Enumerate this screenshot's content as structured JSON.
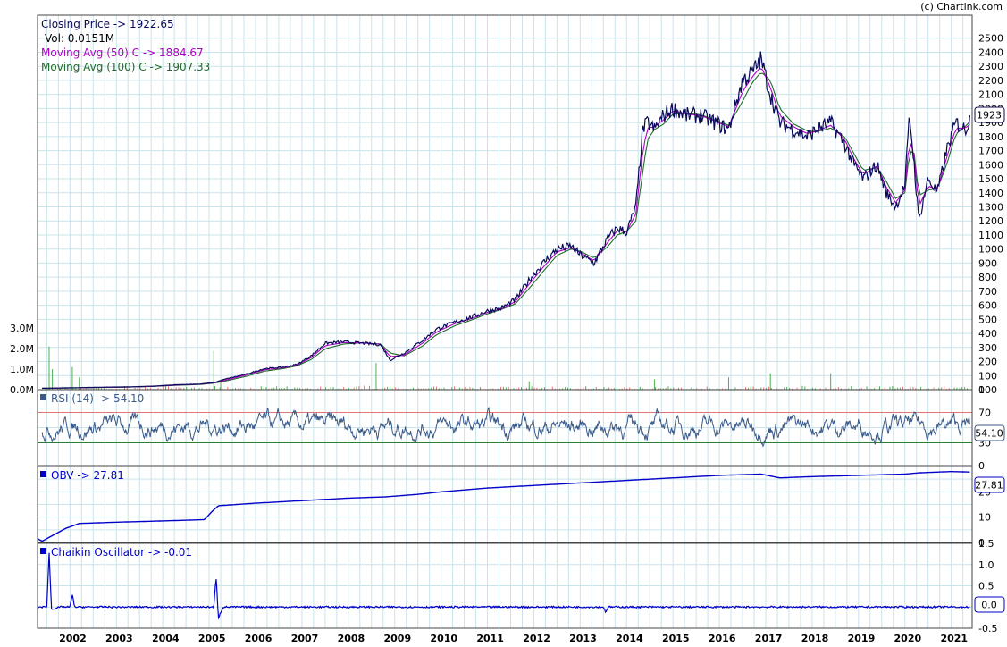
{
  "copyright": "(c) Chartink.com",
  "colors": {
    "price": "#0a0a5a",
    "ma50": "#b000c8",
    "ma100": "#1f6b2a",
    "vol_up": "#4caf50",
    "vol_down": "#e57373",
    "rsi": "#3a5a8a",
    "rsi_upper": "#e57373",
    "rsi_lower": "#2e7d32",
    "obv": "#0000c8",
    "chaikin": "#0000c8",
    "grid": "#c9e4ea"
  },
  "legend": {
    "closing": "Closing Price -> 1922.65",
    "vol": "Vol: 0.0151M",
    "ma50": "Moving Avg (50) C -> 1884.67",
    "ma100": "Moving Avg (100) C -> 1907.33",
    "rsi": "RSI (14) -> 54.10",
    "obv": "OBV -> 27.81",
    "chaikin": "Chaikin Oscillator -> -0.01"
  },
  "badges": {
    "price": "1923",
    "rsi": "54.10",
    "obv": "27.81",
    "chaikin": "0.0"
  },
  "chart_data": [
    {
      "type": "line",
      "panel": "price",
      "x": [
        2001.4,
        2001.8,
        2002.3,
        2002.8,
        2003.3,
        2003.8,
        2004.3,
        2004.8,
        2005.1,
        2005.4,
        2005.8,
        2006.2,
        2006.6,
        2006.9,
        2007.2,
        2007.5,
        2007.9,
        2008.3,
        2008.7,
        2008.9,
        2009.2,
        2009.6,
        2009.9,
        2010.3,
        2010.7,
        2011.0,
        2011.3,
        2011.6,
        2011.9,
        2012.2,
        2012.5,
        2012.8,
        2013.0,
        2013.3,
        2013.6,
        2013.8,
        2014.0,
        2014.2,
        2014.35,
        2014.45,
        2014.6,
        2014.8,
        2015.0,
        2015.3,
        2015.6,
        2015.9,
        2016.2,
        2016.5,
        2016.7,
        2016.9,
        2017.1,
        2017.3,
        2017.6,
        2017.9,
        2018.1,
        2018.4,
        2018.7,
        2018.9,
        2019.1,
        2019.4,
        2019.6,
        2019.8,
        2020.0,
        2020.1,
        2020.2,
        2020.3,
        2020.5,
        2020.7,
        2020.9,
        2021.1,
        2021.3,
        2021.4
      ],
      "values": [
        10,
        12,
        15,
        18,
        20,
        25,
        35,
        40,
        50,
        80,
        110,
        150,
        160,
        180,
        240,
        330,
        340,
        330,
        320,
        210,
        260,
        350,
        430,
        480,
        520,
        560,
        580,
        640,
        780,
        900,
        1000,
        1020,
        960,
        900,
        1080,
        1150,
        1120,
        1300,
        1850,
        1900,
        1850,
        1950,
        2000,
        1950,
        1950,
        1900,
        1850,
        2200,
        2250,
        2350,
        2100,
        1900,
        1850,
        1800,
        1850,
        1900,
        1750,
        1600,
        1500,
        1600,
        1400,
        1300,
        1450,
        1950,
        1600,
        1200,
        1500,
        1400,
        1700,
        1900,
        1850,
        1923
      ],
      "series": [
        {
          "name": "Closing Price",
          "values": [
            10,
            12,
            15,
            18,
            20,
            25,
            35,
            40,
            50,
            80,
            110,
            150,
            160,
            180,
            240,
            330,
            340,
            330,
            320,
            210,
            260,
            350,
            430,
            480,
            520,
            560,
            580,
            640,
            780,
            900,
            1000,
            1020,
            960,
            900,
            1080,
            1150,
            1120,
            1300,
            1850,
            1900,
            1850,
            1950,
            2000,
            1950,
            1950,
            1900,
            1850,
            2200,
            2250,
            2350,
            2100,
            1900,
            1850,
            1800,
            1850,
            1900,
            1750,
            1600,
            1500,
            1600,
            1400,
            1300,
            1450,
            1950,
            1600,
            1200,
            1500,
            1400,
            1700,
            1900,
            1850,
            1923
          ]
        },
        {
          "name": "Moving Avg (50) C",
          "values": [
            10,
            11,
            14,
            17,
            19,
            24,
            33,
            39,
            48,
            72,
            104,
            142,
            156,
            175,
            228,
            312,
            335,
            332,
            322,
            235,
            245,
            330,
            410,
            470,
            510,
            550,
            575,
            625,
            750,
            870,
            980,
            1010,
            975,
            915,
            1050,
            1130,
            1125,
            1250,
            1700,
            1860,
            1870,
            1920,
            1980,
            1960,
            1950,
            1910,
            1870,
            2120,
            2220,
            2300,
            2150,
            1950,
            1870,
            1820,
            1840,
            1880,
            1780,
            1640,
            1530,
            1590,
            1440,
            1330,
            1420,
            1800,
            1650,
            1300,
            1450,
            1420,
            1650,
            1860,
            1860,
            1885
          ]
        },
        {
          "name": "Moving Avg (100) C",
          "values": [
            10,
            11,
            13,
            16,
            18,
            23,
            31,
            37,
            46,
            65,
            95,
            132,
            150,
            170,
            215,
            290,
            325,
            333,
            325,
            260,
            240,
            310,
            390,
            455,
            500,
            540,
            570,
            610,
            720,
            840,
            955,
            1000,
            985,
            935,
            1020,
            1100,
            1125,
            1200,
            1550,
            1780,
            1850,
            1890,
            1960,
            1965,
            1955,
            1920,
            1880,
            2050,
            2180,
            2260,
            2200,
            2000,
            1890,
            1840,
            1835,
            1860,
            1800,
            1680,
            1560,
            1580,
            1480,
            1360,
            1400,
            1700,
            1680,
            1380,
            1420,
            1430,
            1600,
            1820,
            1870,
            1907
          ]
        }
      ],
      "ylim": [
        0,
        2600
      ],
      "yticks": [
        0,
        100,
        200,
        300,
        400,
        500,
        600,
        700,
        800,
        900,
        1000,
        1100,
        1200,
        1300,
        1400,
        1500,
        1600,
        1700,
        1800,
        1900,
        2000,
        2100,
        2200,
        2300,
        2400,
        2500
      ],
      "xticks": [
        "2002",
        "2003",
        "2004",
        "2005",
        "2006",
        "2007",
        "2008",
        "2009",
        "2010",
        "2011",
        "2012",
        "2013",
        "2014",
        "2015",
        "2016",
        "2017",
        "2018",
        "2019",
        "2020",
        "2021"
      ],
      "xlim": [
        2001.3,
        2021.45
      ],
      "volume_ticks": [
        "0.0M",
        "1.0M",
        "2.0M",
        "3.0M"
      ],
      "volume_spikes": [
        {
          "x": 2001.55,
          "v": 2.1
        },
        {
          "x": 2001.62,
          "v": 1.0
        },
        {
          "x": 2002.05,
          "v": 1.1
        },
        {
          "x": 2002.2,
          "v": 0.6
        },
        {
          "x": 2005.1,
          "v": 1.9
        },
        {
          "x": 2005.25,
          "v": 0.5
        },
        {
          "x": 2008.6,
          "v": 1.3
        },
        {
          "x": 2016.2,
          "v": 0.6
        },
        {
          "x": 2017.1,
          "v": 0.8
        },
        {
          "x": 2018.4,
          "v": 0.8
        },
        {
          "x": 2014.6,
          "v": 0.5
        },
        {
          "x": 2011.9,
          "v": 0.4
        }
      ],
      "grid": true,
      "legend_position": "top-left"
    },
    {
      "type": "line",
      "panel": "rsi",
      "title": "RSI (14) -> 54.10",
      "ylim": [
        0,
        100
      ],
      "yticks": [
        0,
        30,
        50,
        70,
        100
      ],
      "levels": {
        "upper": 70,
        "lower": 30
      },
      "last": 54.1
    },
    {
      "type": "line",
      "panel": "obv",
      "title": "OBV -> 27.81",
      "x": [
        2001.3,
        2001.4,
        2001.55,
        2001.7,
        2001.9,
        2002.2,
        2003.0,
        2004.0,
        2004.9,
        2005.05,
        2005.2,
        2006.0,
        2007.0,
        2008.0,
        2008.8,
        2009.5,
        2010.0,
        2011.0,
        2012.0,
        2013.0,
        2014.0,
        2015.0,
        2016.0,
        2016.9,
        2017.3,
        2018.0,
        2019.0,
        2020.0,
        2020.3,
        2021.0,
        2021.4
      ],
      "values": [
        1.5,
        0.5,
        2.0,
        3.5,
        5.5,
        7.5,
        8.0,
        8.5,
        9.0,
        12.0,
        14.5,
        15.5,
        16.5,
        17.5,
        18.0,
        19.0,
        20.0,
        21.5,
        22.5,
        23.5,
        24.5,
        25.5,
        26.5,
        27.0,
        25.5,
        26.0,
        26.5,
        27.0,
        27.5,
        28.0,
        27.81
      ],
      "ylim": [
        0,
        30
      ],
      "yticks": [
        0,
        10,
        20
      ]
    },
    {
      "type": "line",
      "panel": "chaikin",
      "title": "Chaikin Oscillator -> -0.01",
      "x": [
        2001.3,
        2001.5,
        2001.55,
        2001.6,
        2001.8,
        2002.0,
        2002.05,
        2002.1,
        2003.0,
        2004.0,
        2005.0,
        2005.1,
        2005.15,
        2005.2,
        2005.3,
        2006.0,
        2008.0,
        2010.0,
        2013.5,
        2013.55,
        2013.6,
        2015.0,
        2017.0,
        2019.0,
        2021.4
      ],
      "values": [
        0.0,
        0.0,
        1.3,
        -0.05,
        0.0,
        0.0,
        0.3,
        0.0,
        0.0,
        0.0,
        0.0,
        0.0,
        0.7,
        -0.25,
        0.0,
        0.0,
        0.0,
        0.0,
        0.0,
        -0.12,
        0.0,
        0.0,
        0.0,
        0.0,
        0.0
      ],
      "ylim": [
        -0.5,
        1.5
      ],
      "yticks": [
        -0.5,
        0.0,
        0.5,
        1.0,
        1.5
      ],
      "last": -0.01
    }
  ]
}
